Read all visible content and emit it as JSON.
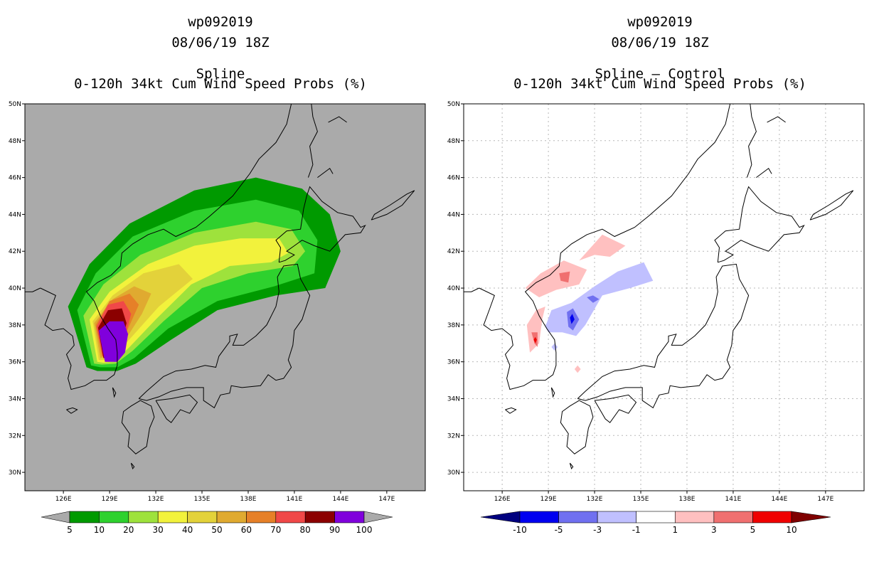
{
  "left_panel": {
    "storm_id": "wp092019",
    "datetime": "08/06/19 18Z",
    "title": "0-120h 34kt Cum Wind Speed Probs (%)",
    "subtitle": "Spline"
  },
  "right_panel": {
    "storm_id": "wp092019",
    "datetime": "08/06/19 18Z",
    "title": "0-120h 34kt Cum Wind Speed Probs (%)",
    "subtitle": "Spline – Control"
  },
  "chart_data": [
    {
      "type": "heatmap",
      "title": "0-120h 34kt Cum Wind Speed Probs (%)",
      "subtitle": "Spline",
      "x_ticks": [
        "126E",
        "129E",
        "132E",
        "135E",
        "138E",
        "141E",
        "144E",
        "147E"
      ],
      "y_ticks": [
        "30N",
        "32N",
        "34N",
        "36N",
        "38N",
        "40N",
        "42N",
        "44N",
        "46N",
        "48N",
        "50N"
      ],
      "lon_range": [
        123.5,
        149.5
      ],
      "lat_range": [
        29,
        50
      ],
      "grid": false,
      "colorbar_levels": [
        "5",
        "10",
        "20",
        "30",
        "40",
        "50",
        "60",
        "70",
        "80",
        "90",
        "100"
      ],
      "colorbar_colors": [
        "#009a00",
        "#2ed12e",
        "#9ee23c",
        "#f2f23c",
        "#e3d23a",
        "#e0aa30",
        "#e68028",
        "#f04848",
        "#8b0000",
        "#8000dc"
      ],
      "contours": [
        {
          "level": 5,
          "color": "#009a00",
          "poly": [
            [
              127.5,
              35.7
            ],
            [
              126.3,
              39.0
            ],
            [
              127.7,
              41.3
            ],
            [
              130.3,
              43.5
            ],
            [
              134.5,
              45.3
            ],
            [
              138.5,
              46.0
            ],
            [
              141.5,
              45.4
            ],
            [
              143.3,
              44.0
            ],
            [
              144.0,
              42.0
            ],
            [
              143.0,
              40.0
            ],
            [
              139.8,
              39.6
            ],
            [
              136.0,
              38.8
            ],
            [
              133.0,
              37.2
            ],
            [
              130.7,
              35.9
            ],
            [
              129.5,
              35.5
            ],
            [
              128.2,
              35.5
            ]
          ]
        },
        {
          "level": 10,
          "color": "#2ed12e",
          "poly": [
            [
              127.8,
              35.8
            ],
            [
              126.9,
              38.8
            ],
            [
              128.1,
              40.8
            ],
            [
              130.5,
              42.8
            ],
            [
              134.5,
              44.2
            ],
            [
              138.5,
              44.8
            ],
            [
              141.3,
              44.2
            ],
            [
              142.5,
              42.6
            ],
            [
              142.3,
              40.8
            ],
            [
              139.7,
              40.1
            ],
            [
              136.0,
              39.3
            ],
            [
              132.8,
              37.8
            ],
            [
              130.6,
              36.2
            ],
            [
              129.5,
              35.7
            ],
            [
              128.4,
              35.7
            ]
          ]
        },
        {
          "level": 20,
          "color": "#9ee23c",
          "poly": [
            [
              128.0,
              35.9
            ],
            [
              127.3,
              38.5
            ],
            [
              128.6,
              40.2
            ],
            [
              131.0,
              41.8
            ],
            [
              134.5,
              43.0
            ],
            [
              138.5,
              43.6
            ],
            [
              140.8,
              43.2
            ],
            [
              141.7,
              42.0
            ],
            [
              140.9,
              41.2
            ],
            [
              138.0,
              40.8
            ],
            [
              135.0,
              40.0
            ],
            [
              132.5,
              38.2
            ],
            [
              130.5,
              36.6
            ],
            [
              129.4,
              35.9
            ],
            [
              128.5,
              35.85
            ]
          ]
        },
        {
          "level": 30,
          "color": "#f2f23c",
          "poly": [
            [
              128.2,
              36.0
            ],
            [
              127.7,
              38.3
            ],
            [
              129.0,
              39.8
            ],
            [
              131.5,
              41.3
            ],
            [
              134.5,
              42.3
            ],
            [
              137.5,
              42.7
            ],
            [
              140.0,
              42.7
            ],
            [
              140.6,
              41.9
            ],
            [
              139.5,
              41.4
            ],
            [
              136.8,
              41.2
            ],
            [
              134.3,
              40.2
            ],
            [
              132.0,
              38.3
            ],
            [
              130.3,
              36.8
            ],
            [
              129.3,
              36.0
            ],
            [
              128.6,
              35.95
            ]
          ]
        },
        {
          "level": 40,
          "color": "#e3d23a",
          "poly": [
            [
              128.3,
              36.1
            ],
            [
              127.9,
              38.2
            ],
            [
              129.2,
              39.6
            ],
            [
              131.2,
              40.8
            ],
            [
              133.5,
              41.3
            ],
            [
              134.4,
              40.5
            ],
            [
              132.2,
              39.0
            ],
            [
              130.6,
              37.5
            ],
            [
              129.4,
              36.4
            ],
            [
              128.8,
              36.1
            ]
          ]
        },
        {
          "level": 50,
          "color": "#e0aa30",
          "poly": [
            [
              128.4,
              36.2
            ],
            [
              128.0,
              38.1
            ],
            [
              129.2,
              39.4
            ],
            [
              130.6,
              40.1
            ],
            [
              131.7,
              39.7
            ],
            [
              131.1,
              38.6
            ],
            [
              130.1,
              37.3
            ],
            [
              129.3,
              36.4
            ]
          ]
        },
        {
          "level": 60,
          "color": "#e68028",
          "poly": [
            [
              128.5,
              36.3
            ],
            [
              128.1,
              38.0
            ],
            [
              129.0,
              39.3
            ],
            [
              130.3,
              39.7
            ],
            [
              130.9,
              39.1
            ],
            [
              130.2,
              37.8
            ],
            [
              129.5,
              36.6
            ]
          ]
        },
        {
          "level": 70,
          "color": "#f04848",
          "poly": [
            [
              128.55,
              36.3
            ],
            [
              128.15,
              37.9
            ],
            [
              128.9,
              39.1
            ],
            [
              129.9,
              39.3
            ],
            [
              130.4,
              38.6
            ],
            [
              130.0,
              37.4
            ],
            [
              129.45,
              36.5
            ]
          ]
        },
        {
          "level": 80,
          "color": "#8b0000",
          "poly": [
            [
              128.6,
              36.2
            ],
            [
              128.25,
              37.85
            ],
            [
              128.9,
              38.8
            ],
            [
              129.8,
              38.9
            ],
            [
              130.1,
              38.1
            ],
            [
              129.8,
              37.0
            ],
            [
              129.4,
              36.3
            ]
          ]
        },
        {
          "level": 90,
          "color": "#8000dc",
          "poly": [
            [
              128.7,
              36.0
            ],
            [
              128.3,
              37.7
            ],
            [
              129.0,
              38.2
            ],
            [
              129.9,
              38.2
            ],
            [
              130.2,
              37.5
            ],
            [
              130.0,
              36.5
            ],
            [
              129.5,
              36.0
            ]
          ]
        }
      ]
    },
    {
      "type": "heatmap",
      "title": "0-120h 34kt Cum Wind Speed Probs (%)",
      "subtitle": "Spline – Control",
      "x_ticks": [
        "126E",
        "129E",
        "132E",
        "135E",
        "138E",
        "141E",
        "144E",
        "147E"
      ],
      "y_ticks": [
        "30N",
        "32N",
        "34N",
        "36N",
        "38N",
        "40N",
        "42N",
        "44N",
        "46N",
        "48N",
        "50N"
      ],
      "lon_range": [
        123.5,
        149.5
      ],
      "lat_range": [
        29,
        50
      ],
      "grid": true,
      "colorbar_levels": [
        "-10",
        "-5",
        "-3",
        "-1",
        "1",
        "3",
        "5",
        "10"
      ],
      "colorbar_colors": [
        "#00007f",
        "#0000f0",
        "#7070f0",
        "#c0c0ff",
        "#ffffff",
        "#ffc0c0",
        "#f07070",
        "#f00000",
        "#7f0000"
      ],
      "contours": [
        {
          "level": 1,
          "color": "#ffc0c0",
          "poly": [
            [
              131.0,
              41.5
            ],
            [
              132.5,
              42.9
            ],
            [
              134.0,
              42.3
            ],
            [
              133.0,
              41.7
            ],
            [
              132.0,
              41.8
            ]
          ]
        },
        {
          "level": 1,
          "color": "#ffc0c0",
          "poly": [
            [
              127.5,
              40.0
            ],
            [
              128.5,
              40.8
            ],
            [
              130.0,
              41.5
            ],
            [
              131.5,
              41.0
            ],
            [
              131.0,
              40.2
            ],
            [
              129.5,
              39.9
            ],
            [
              128.4,
              39.5
            ]
          ]
        },
        {
          "level": 1,
          "color": "#ffc0c0",
          "poly": [
            [
              127.6,
              38.0
            ],
            [
              127.8,
              36.5
            ],
            [
              128.4,
              37.0
            ],
            [
              128.6,
              38.3
            ],
            [
              128.8,
              39.0
            ],
            [
              128.2,
              38.8
            ]
          ]
        },
        {
          "level": 1,
          "color": "#ffc0c0",
          "poly": [
            [
              130.7,
              35.6
            ],
            [
              130.9,
              35.8
            ],
            [
              131.1,
              35.6
            ],
            [
              130.9,
              35.4
            ]
          ]
        },
        {
          "level": 3,
          "color": "#f07070",
          "poly": [
            [
              129.7,
              40.8
            ],
            [
              130.4,
              40.9
            ],
            [
              130.3,
              40.3
            ],
            [
              129.8,
              40.4
            ]
          ]
        },
        {
          "level": 3,
          "color": "#f07070",
          "poly": [
            [
              127.9,
              37.6
            ],
            [
              128.1,
              37.0
            ],
            [
              128.3,
              36.8
            ],
            [
              128.3,
              37.6
            ]
          ]
        },
        {
          "level": 5,
          "color": "#f00000",
          "poly": [
            [
              128.05,
              37.2
            ],
            [
              128.15,
              37.0
            ],
            [
              128.25,
              37.2
            ],
            [
              128.15,
              37.35
            ]
          ]
        },
        {
          "level": -1,
          "color": "#c0c0ff",
          "poly": [
            [
              128.8,
              37.9
            ],
            [
              129.2,
              38.8
            ],
            [
              130.5,
              39.2
            ],
            [
              132.0,
              40.1
            ],
            [
              133.5,
              40.9
            ],
            [
              135.2,
              41.4
            ],
            [
              135.8,
              40.4
            ],
            [
              134.3,
              40.0
            ],
            [
              132.5,
              39.6
            ],
            [
              131.4,
              38.0
            ],
            [
              130.8,
              37.4
            ],
            [
              129.9,
              37.6
            ],
            [
              129.0,
              37.6
            ]
          ]
        },
        {
          "level": -1,
          "color": "#c0c0ff",
          "poly": [
            [
              129.2,
              36.8
            ],
            [
              129.4,
              37.0
            ],
            [
              129.6,
              36.8
            ],
            [
              129.4,
              36.6
            ]
          ]
        },
        {
          "level": -3,
          "color": "#7070f0",
          "poly": [
            [
              130.2,
              38.7
            ],
            [
              130.6,
              38.9
            ],
            [
              131.0,
              38.3
            ],
            [
              130.6,
              37.7
            ],
            [
              130.3,
              37.9
            ]
          ]
        },
        {
          "level": -3,
          "color": "#7070f0",
          "poly": [
            [
              131.5,
              39.5
            ],
            [
              131.9,
              39.6
            ],
            [
              132.3,
              39.4
            ],
            [
              131.9,
              39.2
            ]
          ]
        },
        {
          "level": -5,
          "color": "#0000f0",
          "poly": [
            [
              130.4,
              38.4
            ],
            [
              130.55,
              38.6
            ],
            [
              130.7,
              38.3
            ],
            [
              130.5,
              38.05
            ]
          ]
        }
      ]
    }
  ]
}
